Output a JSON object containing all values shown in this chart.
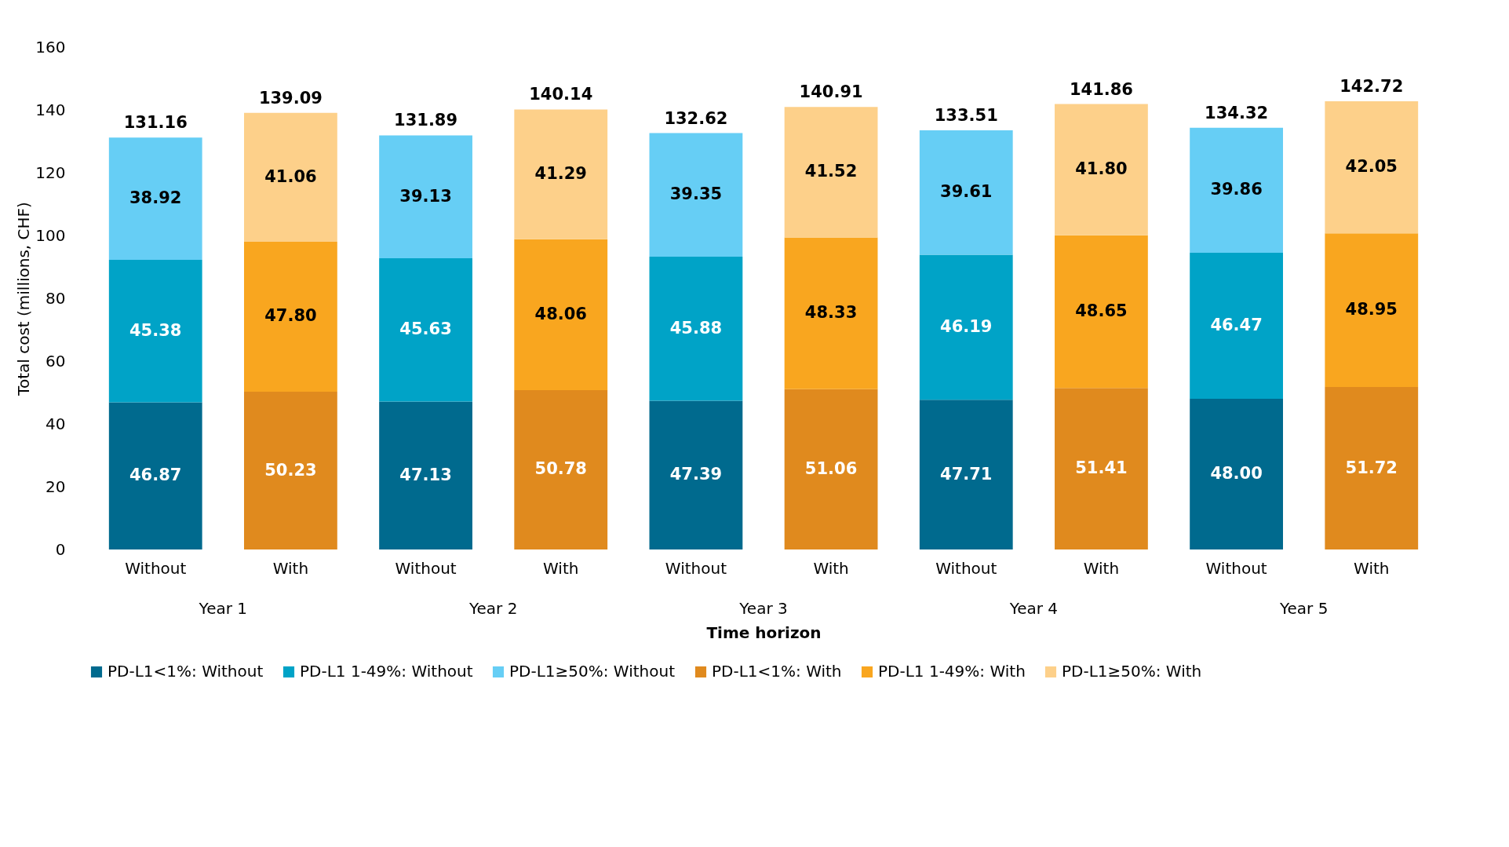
{
  "chart_data": {
    "type": "bar",
    "stacked": true,
    "xlabel": "Time horizon",
    "ylabel": "Total cost (millions, CHF)",
    "categories": [
      "Without",
      "With",
      "Without",
      "With",
      "Without",
      "With",
      "Without",
      "With",
      "Without",
      "With"
    ],
    "series": [
      {
        "name": "PD-L1<1%: Without",
        "color": "#006a8e",
        "values": [
          46.87,
          null,
          47.13,
          null,
          47.39,
          null,
          47.71,
          null,
          48.0,
          null
        ],
        "value_labels": [
          "46.87",
          null,
          "47.13",
          null,
          "47.39",
          null,
          "47.71",
          null,
          "48.00",
          null
        ]
      },
      {
        "name": "PD-L1 1-49%: Without",
        "color": "#00a3c7",
        "values": [
          45.38,
          null,
          45.63,
          null,
          45.88,
          null,
          46.19,
          null,
          46.47,
          null
        ],
        "value_labels": [
          "45.38",
          null,
          "45.63",
          null,
          "45.88",
          null,
          "46.19",
          null,
          "46.47",
          null
        ]
      },
      {
        "name": "PD-L1≥50%: Without",
        "color": "#66cef5",
        "values": [
          38.92,
          null,
          39.13,
          null,
          39.35,
          null,
          39.61,
          null,
          39.86,
          null
        ],
        "value_labels": [
          "38.92",
          null,
          "39.13",
          null,
          "39.35",
          null,
          "39.61",
          null,
          "39.86",
          null
        ]
      },
      {
        "name": "PD-L1<1%: With",
        "color": "#e08a1e",
        "values": [
          null,
          50.23,
          null,
          50.78,
          null,
          51.06,
          null,
          51.41,
          null,
          51.72
        ],
        "value_labels": [
          null,
          "50.23",
          null,
          "50.78",
          null,
          "51.06",
          null,
          "51.41",
          null,
          "51.72"
        ]
      },
      {
        "name": "PD-L1 1-49%: With",
        "color": "#f9a61f",
        "values": [
          null,
          47.8,
          null,
          48.06,
          null,
          48.33,
          null,
          48.65,
          null,
          48.95
        ],
        "value_labels": [
          null,
          "47.80",
          null,
          "48.06",
          null,
          "48.33",
          null,
          "48.65",
          null,
          "48.95"
        ]
      },
      {
        "name": "PD-L1≥50%: With",
        "color": "#fdd08a",
        "values": [
          null,
          41.06,
          null,
          41.29,
          null,
          41.52,
          null,
          41.8,
          null,
          42.05
        ],
        "value_labels": [
          null,
          "41.06",
          null,
          "41.29",
          null,
          "41.52",
          null,
          "41.80",
          null,
          "42.05"
        ]
      }
    ],
    "totals": [
      "131.16",
      "139.09",
      "131.89",
      "140.14",
      "132.62",
      "140.91",
      "133.51",
      "141.86",
      "134.32",
      "142.72"
    ],
    "annotations": [
      "Year 1",
      "Year 2",
      "Year 3",
      "Year 4",
      "Year 5"
    ],
    "ylim": [
      0,
      160
    ],
    "yticks": [
      0,
      20,
      40,
      60,
      80,
      100,
      120,
      140,
      160
    ],
    "grid": false,
    "legend": "bottom"
  }
}
